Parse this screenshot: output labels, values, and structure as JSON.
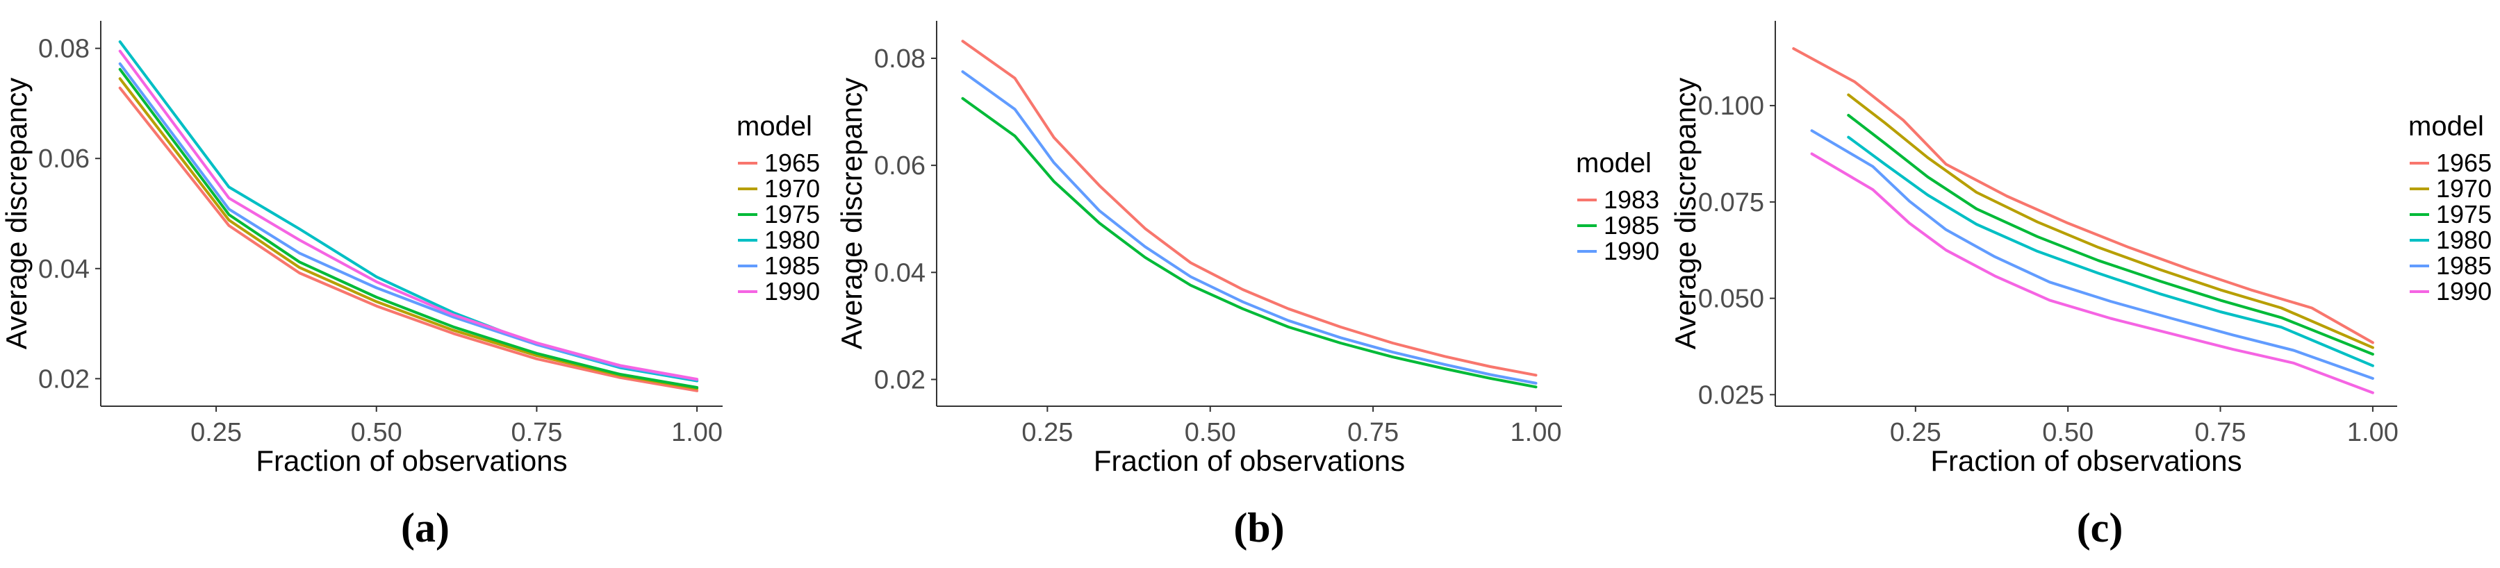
{
  "chart_data": [
    {
      "type": "line",
      "caption": "(a)",
      "xlabel": "Fraction of observations",
      "ylabel": "Average discrepancy",
      "xlim": [
        0.07,
        1.04
      ],
      "ylim": [
        0.015,
        0.085
      ],
      "xticks": [
        0.25,
        0.5,
        0.75,
        1.0
      ],
      "xtick_labels": [
        "0.25",
        "0.50",
        "0.75",
        "1.00"
      ],
      "yticks": [
        0.02,
        0.04,
        0.06,
        0.08
      ],
      "ytick_labels": [
        "0.02",
        "0.04",
        "0.06",
        "0.08"
      ],
      "grid": false,
      "legend": {
        "title": "model",
        "position": "right"
      },
      "series": [
        {
          "name": "1965",
          "color": "#F8766D",
          "x": [
            0.1,
            0.27,
            0.38,
            0.5,
            0.62,
            0.75,
            0.88,
            1.0
          ],
          "y": [
            0.0728,
            0.0478,
            0.0392,
            0.0332,
            0.0282,
            0.0236,
            0.0202,
            0.0178
          ]
        },
        {
          "name": "1970",
          "color": "#B79F00",
          "x": [
            0.1,
            0.27,
            0.38,
            0.5,
            0.62,
            0.75,
            0.88,
            1.0
          ],
          "y": [
            0.0745,
            0.0488,
            0.0402,
            0.034,
            0.0288,
            0.0242,
            0.0206,
            0.0182
          ]
        },
        {
          "name": "1975",
          "color": "#00BA38",
          "x": [
            0.1,
            0.27,
            0.38,
            0.5,
            0.62,
            0.75,
            0.88,
            1.0
          ],
          "y": [
            0.0762,
            0.0498,
            0.0412,
            0.0348,
            0.0294,
            0.0246,
            0.0208,
            0.0184
          ]
        },
        {
          "name": "1980",
          "color": "#00BFC4",
          "x": [
            0.1,
            0.27,
            0.38,
            0.5,
            0.62,
            0.75,
            0.88,
            1.0
          ],
          "y": [
            0.0812,
            0.0548,
            0.0472,
            0.0385,
            0.032,
            0.0262,
            0.022,
            0.0196
          ]
        },
        {
          "name": "1985",
          "color": "#619CFF",
          "x": [
            0.1,
            0.27,
            0.38,
            0.5,
            0.62,
            0.75,
            0.88,
            1.0
          ],
          "y": [
            0.0772,
            0.0508,
            0.0428,
            0.0365,
            0.0312,
            0.0262,
            0.0222,
            0.0198
          ]
        },
        {
          "name": "1990",
          "color": "#F564E3",
          "x": [
            0.1,
            0.27,
            0.38,
            0.5,
            0.62,
            0.75,
            0.88,
            1.0
          ],
          "y": [
            0.0795,
            0.0528,
            0.0452,
            0.0376,
            0.0316,
            0.0265,
            0.0224,
            0.0199
          ]
        }
      ]
    },
    {
      "type": "line",
      "caption": "(b)",
      "xlabel": "Fraction of observations",
      "ylabel": "Average discrepancy",
      "xlim": [
        0.08,
        1.04
      ],
      "ylim": [
        0.015,
        0.087
      ],
      "xticks": [
        0.25,
        0.5,
        0.75,
        1.0
      ],
      "xtick_labels": [
        "0.25",
        "0.50",
        "0.75",
        "1.00"
      ],
      "yticks": [
        0.02,
        0.04,
        0.06,
        0.08
      ],
      "ytick_labels": [
        "0.02",
        "0.04",
        "0.06",
        "0.08"
      ],
      "grid": false,
      "legend": {
        "title": "model",
        "position": "right"
      },
      "series": [
        {
          "name": "1983",
          "color": "#F8766D",
          "x": [
            0.12,
            0.2,
            0.26,
            0.33,
            0.4,
            0.47,
            0.55,
            0.62,
            0.7,
            0.78,
            0.86,
            0.93,
            1.0
          ],
          "y": [
            0.0832,
            0.0763,
            0.0652,
            0.0562,
            0.0482,
            0.0418,
            0.0368,
            0.0332,
            0.0298,
            0.0268,
            0.0243,
            0.0224,
            0.0208
          ]
        },
        {
          "name": "1985",
          "color": "#00BA38",
          "x": [
            0.12,
            0.2,
            0.26,
            0.33,
            0.4,
            0.47,
            0.55,
            0.62,
            0.7,
            0.78,
            0.86,
            0.93,
            1.0
          ],
          "y": [
            0.0725,
            0.0655,
            0.057,
            0.0492,
            0.0428,
            0.0376,
            0.0332,
            0.0298,
            0.0268,
            0.0242,
            0.022,
            0.0202,
            0.0186
          ]
        },
        {
          "name": "1990",
          "color": "#619CFF",
          "x": [
            0.12,
            0.2,
            0.26,
            0.33,
            0.4,
            0.47,
            0.55,
            0.62,
            0.7,
            0.78,
            0.86,
            0.93,
            1.0
          ],
          "y": [
            0.0775,
            0.0705,
            0.0605,
            0.0515,
            0.0448,
            0.0392,
            0.0345,
            0.031,
            0.0278,
            0.0251,
            0.0228,
            0.0209,
            0.0193
          ]
        }
      ]
    },
    {
      "type": "line",
      "caption": "(c)",
      "xlabel": "Fraction of observations",
      "ylabel": "Average discrepancy",
      "xlim": [
        0.02,
        1.04
      ],
      "ylim": [
        0.022,
        0.122
      ],
      "xticks": [
        0.25,
        0.5,
        0.75,
        1.0
      ],
      "xtick_labels": [
        "0.25",
        "0.50",
        "0.75",
        "1.00"
      ],
      "yticks": [
        0.025,
        0.05,
        0.075,
        0.1
      ],
      "ytick_labels": [
        "0.025",
        "0.050",
        "0.075",
        "0.100"
      ],
      "grid": false,
      "legend": {
        "title": "model",
        "position": "right"
      },
      "series": [
        {
          "name": "1965",
          "color": "#F8766D",
          "x": [
            0.05,
            0.15,
            0.23,
            0.3,
            0.4,
            0.5,
            0.6,
            0.7,
            0.8,
            0.9,
            1.0
          ],
          "y": [
            0.1148,
            0.1062,
            0.0962,
            0.0848,
            0.0765,
            0.0695,
            0.0632,
            0.0575,
            0.0522,
            0.0475,
            0.0385
          ]
        },
        {
          "name": "1970",
          "color": "#B79F00",
          "x": [
            0.14,
            0.2,
            0.27,
            0.35,
            0.45,
            0.55,
            0.65,
            0.75,
            0.85,
            1.0
          ],
          "y": [
            0.1028,
            0.0955,
            0.0865,
            0.0775,
            0.0698,
            0.0632,
            0.0575,
            0.0522,
            0.0475,
            0.0372
          ]
        },
        {
          "name": "1975",
          "color": "#00BA38",
          "x": [
            0.14,
            0.2,
            0.27,
            0.35,
            0.45,
            0.55,
            0.65,
            0.75,
            0.85,
            1.0
          ],
          "y": [
            0.0975,
            0.0902,
            0.0815,
            0.0732,
            0.066,
            0.0598,
            0.0545,
            0.0495,
            0.045,
            0.0355
          ]
        },
        {
          "name": "1980",
          "color": "#00BFC4",
          "x": [
            0.14,
            0.2,
            0.27,
            0.35,
            0.45,
            0.55,
            0.65,
            0.75,
            0.85,
            1.0
          ],
          "y": [
            0.0918,
            0.0848,
            0.0768,
            0.0692,
            0.0622,
            0.0565,
            0.0512,
            0.0465,
            0.0425,
            0.0325
          ]
        },
        {
          "name": "1985",
          "color": "#619CFF",
          "x": [
            0.08,
            0.18,
            0.24,
            0.3,
            0.38,
            0.47,
            0.57,
            0.67,
            0.77,
            0.87,
            1.0
          ],
          "y": [
            0.0935,
            0.0842,
            0.0752,
            0.0678,
            0.0608,
            0.0542,
            0.0492,
            0.0448,
            0.0405,
            0.0365,
            0.0292
          ]
        },
        {
          "name": "1990",
          "color": "#F564E3",
          "x": [
            0.08,
            0.18,
            0.24,
            0.3,
            0.38,
            0.47,
            0.57,
            0.67,
            0.77,
            0.87,
            1.0
          ],
          "y": [
            0.0875,
            0.0782,
            0.0695,
            0.0625,
            0.0558,
            0.0495,
            0.0448,
            0.0408,
            0.0368,
            0.0332,
            0.0255
          ]
        }
      ]
    }
  ]
}
